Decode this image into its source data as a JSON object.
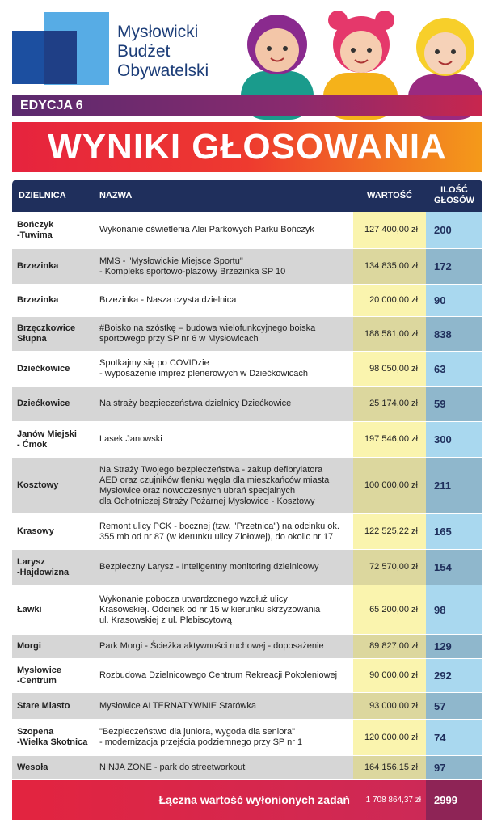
{
  "header": {
    "logo_lines": [
      "Mysłowicki",
      "Budżet",
      "Obywatelski"
    ],
    "edition": "EDYCJA 6",
    "title": "WYNIKI GŁOSOWANIA"
  },
  "table": {
    "columns": [
      "DZIELNICA",
      "NAZWA",
      "WARTOŚĆ",
      "ILOŚĆ\nGŁOSÓW"
    ],
    "rows": [
      [
        "Bończyk\n-Tuwima",
        "Wykonanie oświetlenia Alei Parkowych Parku Bończyk",
        "127 400,00 zł",
        200
      ],
      [
        "Brzezinka",
        "MMS - \"Mysłowickie Miejsce Sportu\"\n- Kompleks sportowo-plażowy Brzezinka SP 10",
        "134 835,00 zł",
        172
      ],
      [
        "Brzezinka",
        "Brzezinka - Nasza czysta dzielnica",
        "20 000,00 zł",
        90
      ],
      [
        "Brzęczkowice\nSłupna",
        "#Boisko na szóstkę – budowa wielofunkcyjnego boiska\nsportowego przy SP nr 6 w Mysłowicach",
        "188 581,00 zł",
        838
      ],
      [
        "Dziećkowice",
        "Spotkajmy się po COVIDzie\n- wyposażenie imprez plenerowych w Dziećkowicach",
        "98 050,00 zł",
        63
      ],
      [
        "Dziećkowice",
        "Na straży bezpieczeństwa dzielnicy Dziećkowice",
        "25 174,00 zł",
        59
      ],
      [
        "Janów Miejski\n- Ćmok",
        "Lasek Janowski",
        "197 546,00 zł",
        300
      ],
      [
        "Kosztowy",
        "Na Straży Twojego bezpieczeństwa - zakup defibrylatora\nAED oraz czujników tlenku węgla dla mieszkańców miasta\nMysłowice oraz nowoczesnych ubrań specjalnych\ndla Ochotniczej Straży Pożarnej Mysłowice - Kosztowy",
        "100 000,00 zł",
        211
      ],
      [
        "Krasowy",
        "Remont ulicy PCK - bocznej (tzw. \"Przetnica\") na odcinku ok.\n355 mb od nr 87 (w kierunku ulicy Ziołowej), do okolic nr 17",
        "122 525,22 zł",
        165
      ],
      [
        "Larysz\n-Hajdowizna",
        "Bezpieczny Larysz - Inteligentny monitoring dzielnicowy",
        "72 570,00 zł",
        154
      ],
      [
        "Ławki",
        "Wykonanie pobocza utwardzonego wzdłuż ulicy\nKrasowskiej. Odcinek od nr 15 w kierunku skrzyżowania\nul. Krasowskiej  z ul. Plebiscytową",
        "65 200,00 zł",
        98
      ],
      [
        "Morgi",
        "Park Morgi - Ścieżka aktywności ruchowej - doposażenie",
        "89 827,00 zł",
        129
      ],
      [
        "Mysłowice\n-Centrum",
        "Rozbudowa Dzielnicowego Centrum Rekreacji Pokoleniowej",
        "90 000,00 zł",
        292
      ],
      [
        "Stare Miasto",
        "Mysłowice ALTERNATYWNIE Starówka",
        "93 000,00 zł",
        57
      ],
      [
        "Szopena\n-Wielka Skotnica",
        "\"Bezpieczeństwo dla juniora, wygoda dla seniora\"\n- modernizacja przejścia podziemnego przy SP nr 1",
        "120 000,00 zł",
        74
      ],
      [
        "Wesoła",
        "NINJA ZONE - park do streetworkout",
        "164 156,15 zł",
        97
      ]
    ],
    "total": {
      "label": "Łączna wartość wyłonionych zadań",
      "value": "1 708 864,37 zł",
      "votes": 2999
    }
  }
}
